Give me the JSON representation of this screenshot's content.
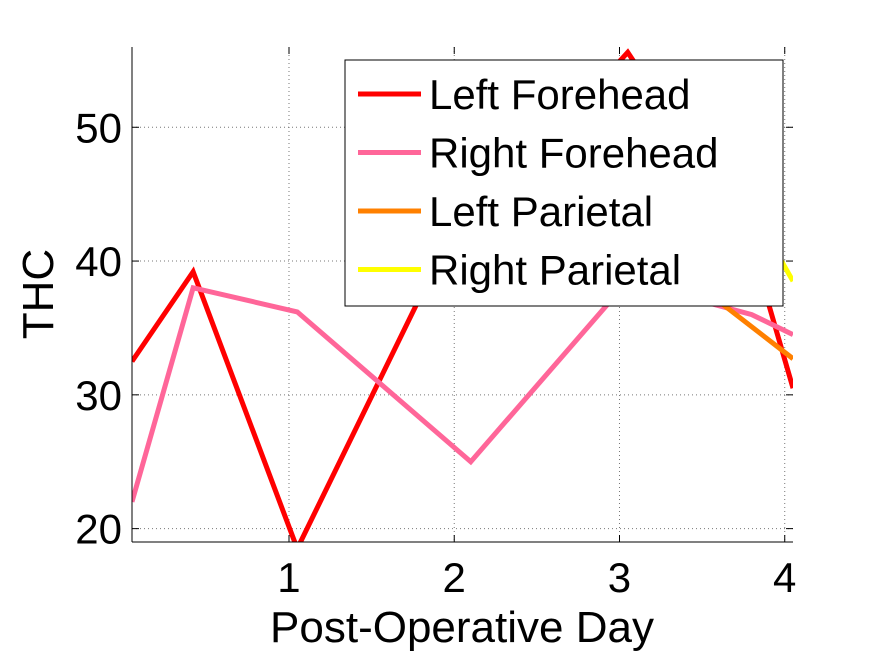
{
  "chart_data": {
    "type": "line",
    "title": "",
    "xlabel": "Post-Operative Day",
    "ylabel": "THC",
    "xlim": [
      0.05,
      4.05
    ],
    "ylim": [
      19,
      56
    ],
    "xticks": [
      1,
      2,
      3,
      4
    ],
    "yticks": [
      20,
      30,
      40,
      50
    ],
    "grid": true,
    "legend_position": "top-right",
    "series": [
      {
        "name": "Left Forehead",
        "color": "#ff0000",
        "points": [
          [
            0.05,
            32.5
          ],
          [
            0.42,
            39.2
          ],
          [
            1.05,
            18.5
          ],
          [
            1.9,
            40.0
          ],
          [
            3.05,
            55.6
          ],
          [
            3.78,
            42.0
          ],
          [
            4.05,
            30.5
          ]
        ]
      },
      {
        "name": "Right Forehead",
        "color": "#ff6699",
        "points": [
          [
            0.05,
            22.0
          ],
          [
            0.42,
            38.0
          ],
          [
            1.05,
            36.2
          ],
          [
            2.1,
            25.0
          ],
          [
            3.05,
            38.5
          ],
          [
            3.8,
            36.0
          ],
          [
            4.05,
            34.5
          ]
        ]
      },
      {
        "name": "Left Parietal",
        "color": "#ff8000",
        "points": [
          [
            3.6,
            37.0
          ],
          [
            4.05,
            32.7
          ]
        ]
      },
      {
        "name": "Right Parietal",
        "color": "#ffff00",
        "points": [
          [
            3.98,
            40.0
          ],
          [
            4.05,
            38.5
          ]
        ]
      }
    ]
  }
}
